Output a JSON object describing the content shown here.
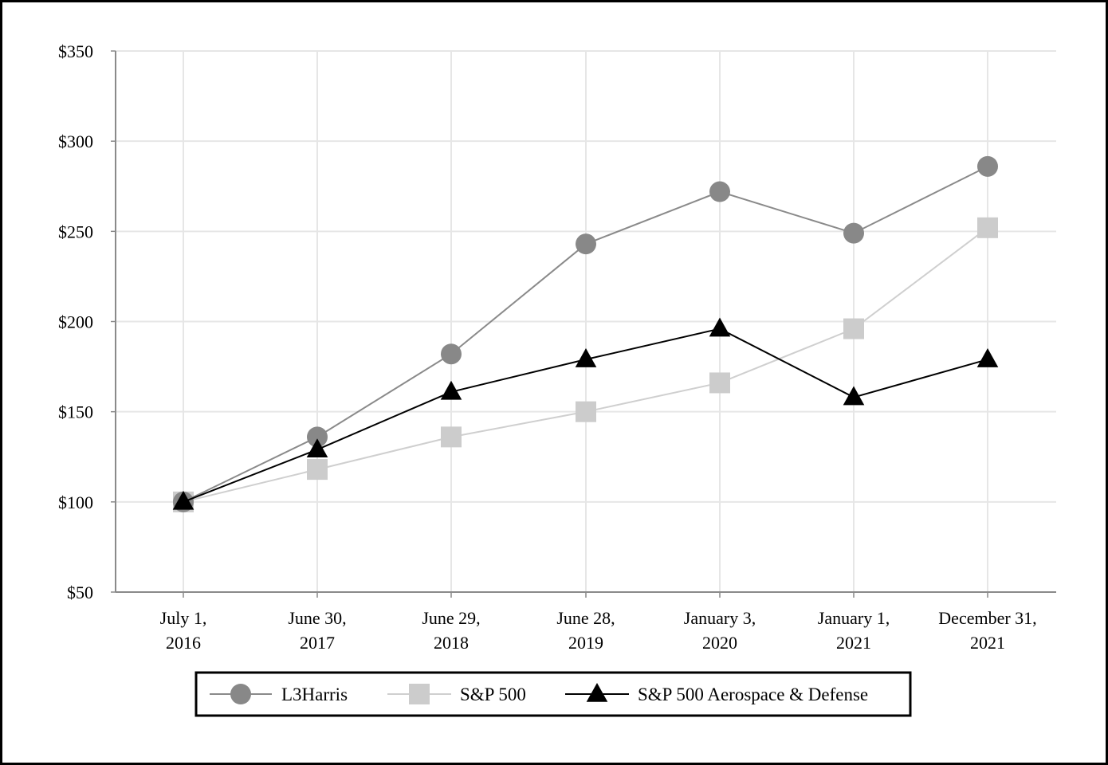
{
  "chart_data": {
    "type": "line",
    "categories": [
      [
        "July 1,",
        "2016"
      ],
      [
        "June 30,",
        "2017"
      ],
      [
        "June 29,",
        "2018"
      ],
      [
        "June 28,",
        "2019"
      ],
      [
        "January 3,",
        "2020"
      ],
      [
        "January 1,",
        "2021"
      ],
      [
        "December 31,",
        "2021"
      ]
    ],
    "yticks": [
      "$50",
      "$100",
      "$150",
      "$200",
      "$250",
      "$300",
      "$350"
    ],
    "ylim": [
      50,
      350
    ],
    "y_tick_values": [
      50,
      100,
      150,
      200,
      250,
      300,
      350
    ],
    "grid": true,
    "legend_position": "bottom",
    "series": [
      {
        "name": "L3Harris",
        "marker": "circle",
        "line_color": "#8a8a8a",
        "marker_color": "#888888",
        "values": [
          100,
          136,
          182,
          243,
          272,
          249,
          286
        ]
      },
      {
        "name": "S&P 500",
        "marker": "square",
        "line_color": "#cfcfcf",
        "marker_color": "#cccccc",
        "values": [
          100,
          118,
          136,
          150,
          166,
          196,
          252
        ]
      },
      {
        "name": "S&P 500 Aerospace & Defense",
        "marker": "triangle",
        "line_color": "#000000",
        "marker_color": "#000000",
        "values": [
          100,
          129,
          161,
          179,
          196,
          158,
          179
        ]
      }
    ]
  }
}
